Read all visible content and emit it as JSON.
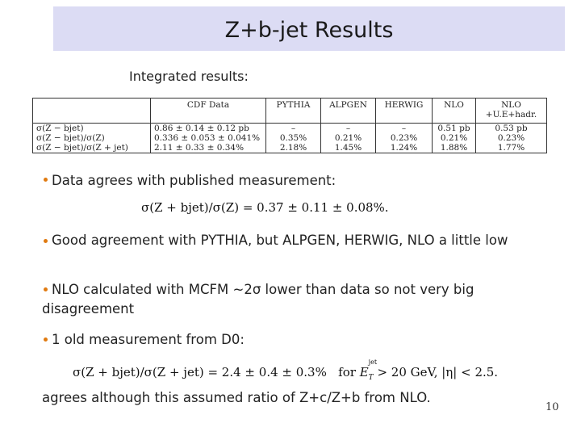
{
  "header": {
    "title": "Z+b-jet Results"
  },
  "subtitle": "Integrated results:",
  "table": {
    "header": [
      "CDF Data",
      "PYTHIA",
      "ALPGEN",
      "HERWIG",
      "NLO",
      [
        "NLO",
        "+U.E+hadr."
      ]
    ],
    "rows": [
      [
        "σ(Z − bjet)",
        "0.86 ± 0.14 ± 0.12 pb",
        "–",
        "–",
        "–",
        "0.51 pb",
        "0.53 pb"
      ],
      [
        "σ(Z − bjet)/σ(Z)",
        "0.336 ± 0.053 ± 0.041%",
        "0.35%",
        "0.21%",
        "0.23%",
        "0.21%",
        "0.23%"
      ],
      [
        "σ(Z − bjet)/σ(Z + jet)",
        "2.11 ± 0.33 ± 0.34%",
        "2.18%",
        "1.45%",
        "1.24%",
        "1.88%",
        "1.77%"
      ]
    ]
  },
  "bullets": [
    {
      "text": "Data agrees with published measurement:",
      "formula": "σ(Z + bjet)/σ(Z) = 0.37 ± 0.11 ± 0.08%."
    },
    {
      "text": "Good agreement with PYTHIA, but ALPGEN, HERWIG, NLO a little low"
    },
    {
      "text": "NLO calculated with MCFM ~2σ lower than data so not very big disagreement"
    },
    {
      "text": "1 old measurement from D0:",
      "formula": [
        "σ(Z + bjet)/σ(Z + jet) = 2.4 ± 0.4 ± 0.3%",
        "for",
        "E",
        "T",
        "jet",
        "> 20 GeV, |η| < 2.5."
      ]
    }
  ],
  "footer_text": "agrees although this assumed ratio of Z+c/Z+b from NLO.",
  "page_number": "10"
}
